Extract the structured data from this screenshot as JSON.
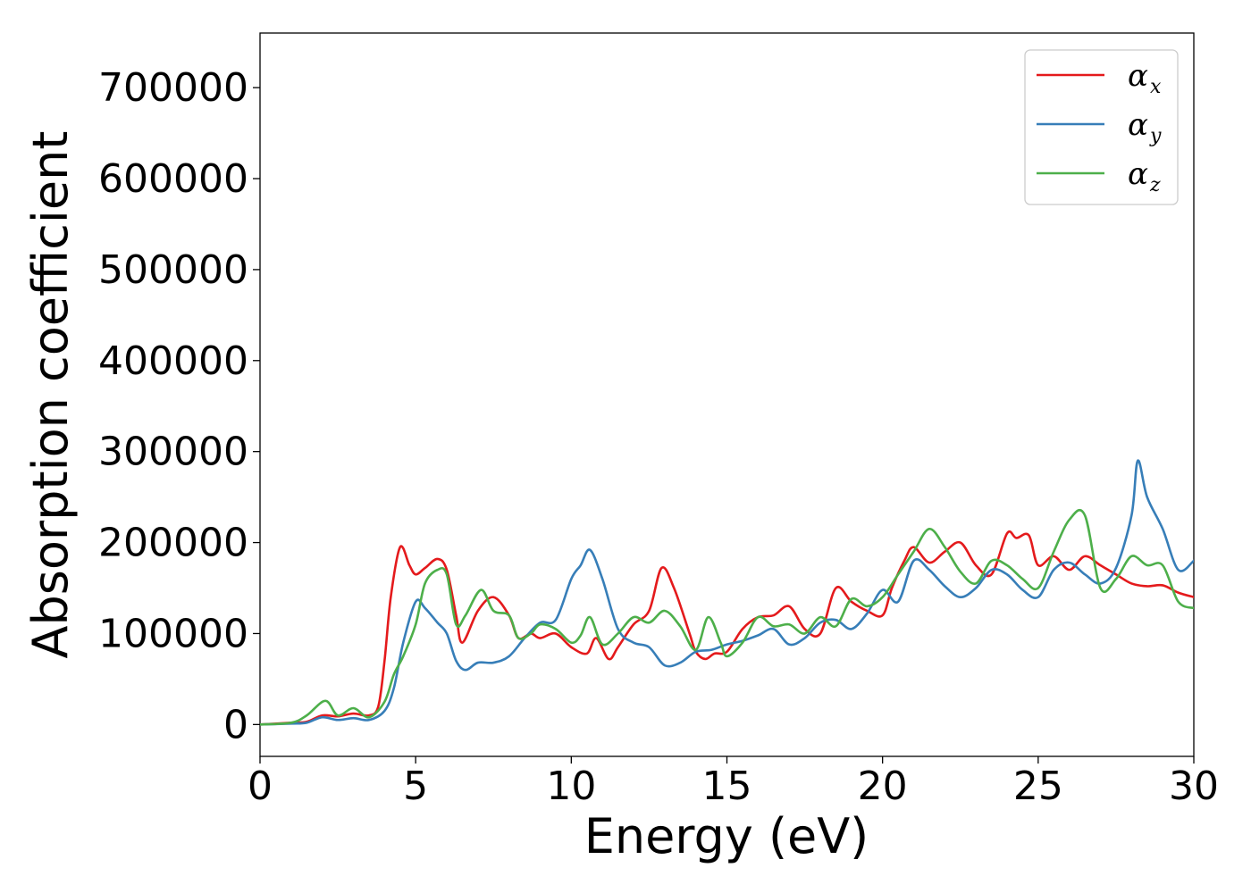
{
  "chart_data": {
    "type": "line",
    "title": "",
    "xlabel": "Energy (eV)",
    "ylabel": "Absorption coefficient",
    "xlim": [
      0,
      30
    ],
    "ylim": [
      -35000,
      760000
    ],
    "xticks": [
      0,
      5,
      10,
      15,
      20,
      25,
      30
    ],
    "xtick_labels": [
      "0",
      "5",
      "10",
      "15",
      "20",
      "25",
      "30"
    ],
    "yticks": [
      0,
      100000,
      200000,
      300000,
      400000,
      500000,
      600000,
      700000
    ],
    "ytick_labels": [
      "0",
      "100000",
      "200000",
      "300000",
      "400000",
      "500000",
      "600000",
      "700000"
    ],
    "grid": false,
    "legend_position": "top-right",
    "series": [
      {
        "name": "αx",
        "name_base": "α",
        "name_sub": "x",
        "color": "#e41a1c",
        "x": [
          0,
          1,
          1.5,
          2,
          2.5,
          3,
          3.5,
          3.8,
          4.0,
          4.2,
          4.5,
          4.8,
          5.0,
          5.3,
          5.7,
          6.0,
          6.3,
          6.5,
          7.0,
          7.5,
          8.0,
          8.3,
          8.7,
          9.0,
          9.5,
          10.0,
          10.5,
          10.8,
          11.2,
          11.5,
          12.0,
          12.5,
          12.9,
          13.3,
          13.8,
          14.0,
          14.3,
          14.6,
          15.0,
          15.5,
          16.0,
          16.5,
          17.0,
          17.5,
          18.0,
          18.5,
          19.0,
          19.5,
          20.0,
          20.3,
          20.7,
          21.0,
          21.5,
          22.0,
          22.5,
          23.0,
          23.5,
          24.0,
          24.3,
          24.7,
          25.0,
          25.5,
          26.0,
          26.5,
          27.0,
          27.5,
          28.0,
          28.5,
          29.0,
          29.5,
          30.0
        ],
        "values": [
          0,
          2000,
          3000,
          10000,
          9000,
          12000,
          10000,
          20000,
          70000,
          140000,
          195000,
          175000,
          165000,
          172000,
          182000,
          170000,
          120000,
          90000,
          125000,
          140000,
          120000,
          95000,
          100000,
          95000,
          100000,
          85000,
          78000,
          95000,
          72000,
          85000,
          110000,
          125000,
          172000,
          150000,
          100000,
          80000,
          72000,
          78000,
          80000,
          105000,
          118000,
          120000,
          130000,
          105000,
          100000,
          150000,
          135000,
          125000,
          120000,
          150000,
          180000,
          195000,
          178000,
          190000,
          200000,
          175000,
          165000,
          210000,
          205000,
          208000,
          175000,
          185000,
          170000,
          185000,
          175000,
          165000,
          155000,
          152000,
          153000,
          145000,
          140000
        ]
      },
      {
        "name": "αy",
        "name_base": "α",
        "name_sub": "y",
        "color": "#377eb8",
        "x": [
          0,
          1,
          1.5,
          2,
          2.5,
          3,
          3.5,
          4.0,
          4.3,
          4.6,
          5.0,
          5.3,
          5.7,
          6.0,
          6.3,
          6.6,
          7.0,
          7.5,
          8.0,
          8.5,
          9.0,
          9.5,
          10.0,
          10.3,
          10.6,
          11.0,
          11.5,
          12.0,
          12.5,
          13.0,
          13.5,
          14.0,
          14.5,
          15.0,
          15.5,
          16.0,
          16.5,
          17.0,
          17.5,
          18.0,
          18.5,
          19.0,
          19.5,
          20.0,
          20.5,
          21.0,
          21.5,
          22.0,
          22.5,
          23.0,
          23.5,
          24.0,
          24.5,
          25.0,
          25.5,
          26.0,
          26.5,
          27.0,
          27.5,
          28.0,
          28.2,
          28.5,
          29.0,
          29.5,
          30.0
        ],
        "values": [
          0,
          1000,
          2000,
          8000,
          5000,
          7000,
          5000,
          15000,
          40000,
          90000,
          135000,
          128000,
          112000,
          100000,
          70000,
          60000,
          68000,
          68000,
          75000,
          95000,
          112000,
          115000,
          160000,
          175000,
          192000,
          160000,
          105000,
          90000,
          85000,
          65000,
          68000,
          80000,
          82000,
          88000,
          92000,
          98000,
          105000,
          88000,
          95000,
          112000,
          115000,
          105000,
          122000,
          148000,
          135000,
          180000,
          170000,
          152000,
          140000,
          150000,
          170000,
          165000,
          148000,
          140000,
          170000,
          178000,
          165000,
          155000,
          172000,
          230000,
          290000,
          250000,
          215000,
          170000,
          180000
        ]
      },
      {
        "name": "αz",
        "name_base": "α",
        "name_sub": "z",
        "color": "#4daf4a",
        "x": [
          0,
          1,
          1.5,
          2.1,
          2.5,
          3.0,
          3.5,
          4.0,
          4.3,
          4.6,
          5.0,
          5.3,
          5.7,
          6.0,
          6.3,
          6.6,
          7.1,
          7.5,
          8.0,
          8.3,
          8.7,
          9.0,
          9.5,
          10.0,
          10.3,
          10.6,
          11.0,
          11.5,
          12.0,
          12.5,
          13.0,
          13.5,
          14.0,
          14.4,
          14.8,
          15.0,
          15.5,
          16.0,
          16.5,
          17.0,
          17.5,
          18.0,
          18.5,
          19.0,
          19.5,
          20.0,
          20.5,
          21.0,
          21.5,
          22.0,
          22.5,
          23.0,
          23.5,
          24.0,
          24.5,
          25.0,
          25.5,
          26.0,
          26.5,
          27.0,
          27.5,
          28.0,
          28.5,
          29.0,
          29.5,
          30.0
        ],
        "values": [
          0,
          2000,
          10000,
          26000,
          10000,
          18000,
          8000,
          25000,
          55000,
          75000,
          110000,
          155000,
          170000,
          165000,
          110000,
          120000,
          148000,
          125000,
          120000,
          95000,
          100000,
          110000,
          105000,
          90000,
          98000,
          118000,
          88000,
          100000,
          118000,
          112000,
          125000,
          108000,
          82000,
          118000,
          90000,
          75000,
          90000,
          118000,
          108000,
          110000,
          100000,
          118000,
          108000,
          138000,
          130000,
          140000,
          165000,
          190000,
          215000,
          195000,
          168000,
          155000,
          180000,
          175000,
          160000,
          150000,
          190000,
          225000,
          230000,
          150000,
          160000,
          185000,
          175000,
          175000,
          135000,
          128000
        ]
      }
    ]
  }
}
